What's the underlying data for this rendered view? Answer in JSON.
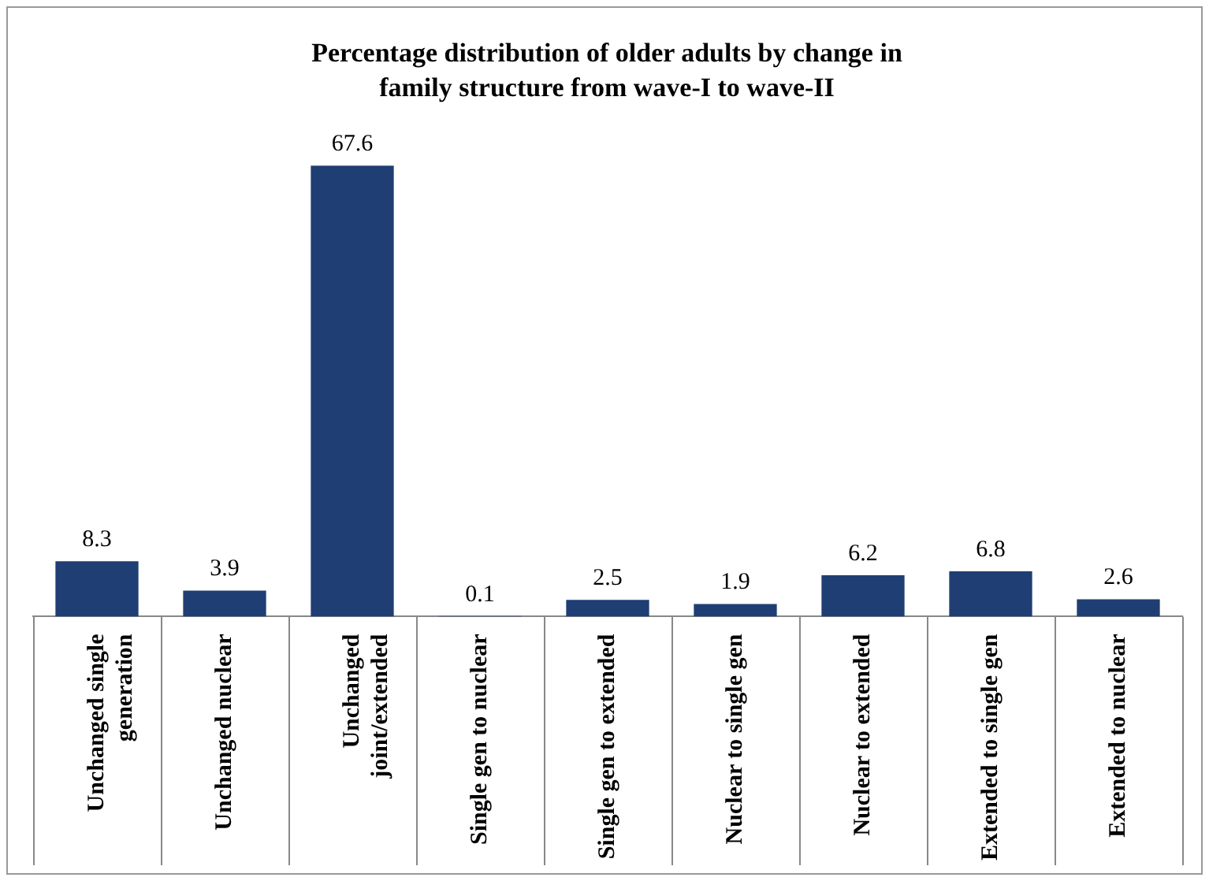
{
  "chart_data": {
    "type": "bar",
    "title": "Percentage distribution  of older adults by change in family structure  from wave-I to wave-II",
    "categories": [
      "Unchanged single generation",
      "Unchanged nuclear",
      "Unchanged joint/extended",
      "Single gen to nuclear",
      "Single gen to extended",
      "Nuclear to single gen",
      "Nuclear to extended",
      "Extended to single gen",
      "Extended to nuclear"
    ],
    "values": [
      8.3,
      3.9,
      67.6,
      0.1,
      2.5,
      1.9,
      6.2,
      6.8,
      2.6
    ],
    "color": "#1f3e74",
    "data_labels": true,
    "grid": false,
    "legend": false
  }
}
